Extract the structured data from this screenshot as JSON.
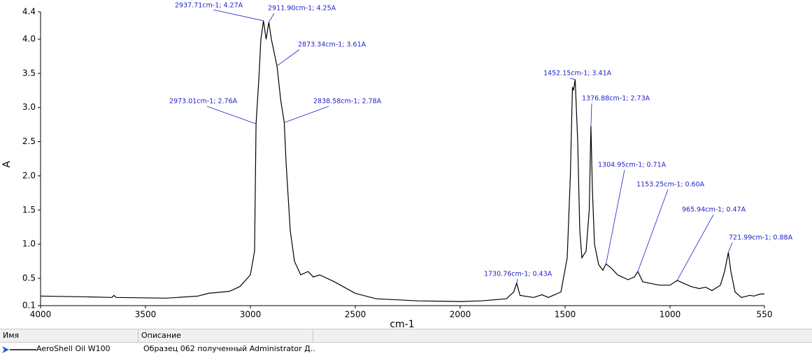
{
  "chart_data": {
    "type": "line",
    "ylabel": "A",
    "xlabel": "cm-1",
    "xlim": [
      4000,
      550
    ],
    "xticks": [
      4000,
      3500,
      3000,
      2500,
      2000,
      1500,
      1000,
      550
    ],
    "ylim": [
      0.1,
      4.4
    ],
    "yticks": [
      0.1,
      0.5,
      {
        "value": 1,
        "label": "1.0"
      },
      1.5,
      {
        "value": 2,
        "label": "2.0"
      },
      2.5,
      {
        "value": 3,
        "label": "3.0"
      },
      3.5,
      {
        "value": 4,
        "label": "4.0"
      },
      4.4
    ],
    "x": [
      4000,
      3800,
      3660,
      3650,
      3640,
      3400,
      3250,
      3200,
      3100,
      3050,
      3000,
      2980,
      2973.01,
      2960,
      2950,
      2937.71,
      2925,
      2911.9,
      2900,
      2873.34,
      2855,
      2838.58,
      2830,
      2810,
      2790,
      2760,
      2725,
      2700,
      2670,
      2600,
      2500,
      2400,
      2200,
      2000,
      1900,
      1780,
      1745,
      1730.76,
      1715,
      1650,
      1610,
      1580,
      1520,
      1490,
      1475,
      1465,
      1460,
      1452.15,
      1440,
      1430,
      1420,
      1400,
      1385,
      1376.88,
      1370,
      1360,
      1340,
      1320,
      1304.95,
      1280,
      1250,
      1200,
      1170,
      1153.25,
      1130,
      1100,
      1050,
      1000,
      965.94,
      930,
      900,
      860,
      830,
      800,
      760,
      740,
      721.99,
      710,
      690,
      660,
      620,
      600,
      570,
      550
    ],
    "series": [
      {
        "color": "#000000",
        "values": [
          0.24,
          0.23,
          0.22,
          0.25,
          0.22,
          0.21,
          0.24,
          0.28,
          0.31,
          0.38,
          0.55,
          0.9,
          2.76,
          3.4,
          4.0,
          4.27,
          4.0,
          4.25,
          4.0,
          3.61,
          3.1,
          2.78,
          2.2,
          1.2,
          0.75,
          0.55,
          0.6,
          0.52,
          0.55,
          0.45,
          0.28,
          0.2,
          0.17,
          0.16,
          0.17,
          0.2,
          0.3,
          0.43,
          0.25,
          0.22,
          0.26,
          0.22,
          0.3,
          0.8,
          2.0,
          3.3,
          3.25,
          3.41,
          2.5,
          1.2,
          0.8,
          0.9,
          1.5,
          2.73,
          1.8,
          1.0,
          0.7,
          0.62,
          0.71,
          0.65,
          0.55,
          0.48,
          0.52,
          0.6,
          0.45,
          0.43,
          0.4,
          0.4,
          0.47,
          0.42,
          0.38,
          0.35,
          0.37,
          0.32,
          0.4,
          0.6,
          0.88,
          0.6,
          0.3,
          0.22,
          0.25,
          0.24,
          0.27,
          0.27
        ]
      }
    ],
    "annotations": [
      {
        "text": "2937.71cm-1; 4.27A",
        "x": 2937.71,
        "y": 4.27
      },
      {
        "text": "2911.90cm-1; 4.25A",
        "x": 2911.9,
        "y": 4.25
      },
      {
        "text": "2873.34cm-1; 3.61A",
        "x": 2873.34,
        "y": 3.61
      },
      {
        "text": "2973.01cm-1; 2.76A",
        "x": 2973.01,
        "y": 2.76
      },
      {
        "text": "2838.58cm-1; 2.78A",
        "x": 2838.58,
        "y": 2.78
      },
      {
        "text": "1452.15cm-1; 3.41A",
        "x": 1452.15,
        "y": 3.41
      },
      {
        "text": "1376.88cm-1; 2.73A",
        "x": 1376.88,
        "y": 2.73
      },
      {
        "text": "1304.95cm-1; 0.71A",
        "x": 1304.95,
        "y": 0.71
      },
      {
        "text": "1153.25cm-1; 0.60A",
        "x": 1153.25,
        "y": 0.6
      },
      {
        "text": "965.94cm-1; 0.47A",
        "x": 965.94,
        "y": 0.47
      },
      {
        "text": "721.99cm-1; 0.88A",
        "x": 721.99,
        "y": 0.88
      },
      {
        "text": "1730.76cm-1; 0.43A",
        "x": 1730.76,
        "y": 0.43
      }
    ]
  },
  "legend_table": {
    "headers": [
      "Имя",
      "Описание"
    ],
    "rows": [
      [
        "AeroShell Oil W100",
        "Образец 062 полученный Administrator Д..."
      ]
    ]
  }
}
